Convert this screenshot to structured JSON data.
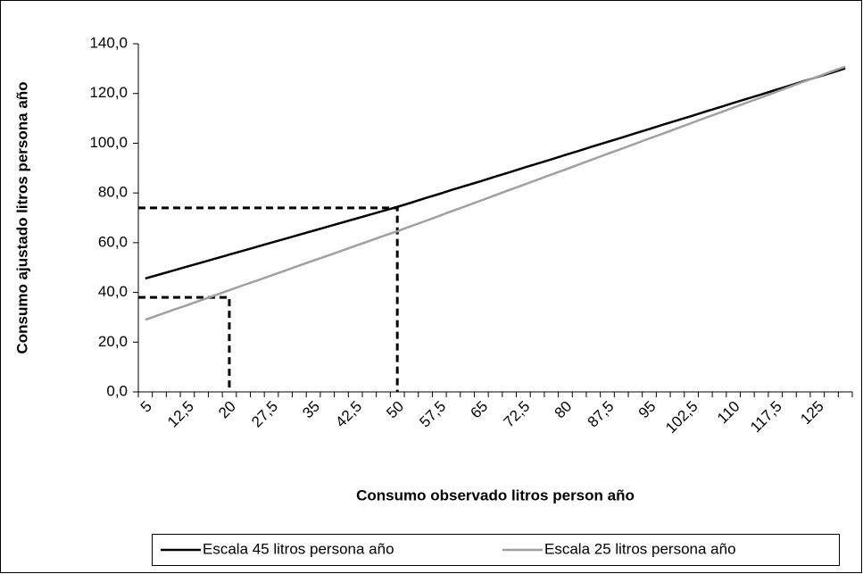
{
  "chart_data": {
    "type": "line",
    "x_label": "Consumo observado litros person año",
    "y_label": "Consumo ajustado litros persona año",
    "categories": [
      "5",
      null,
      null,
      "12,5",
      null,
      null,
      "20",
      null,
      null,
      "27,5",
      null,
      null,
      "35",
      null,
      null,
      "42,5",
      null,
      null,
      "50",
      null,
      null,
      "57,5",
      null,
      null,
      "65",
      null,
      null,
      "72,5",
      null,
      null,
      "80",
      null,
      null,
      "87,5",
      null,
      null,
      "95",
      null,
      null,
      "102,5",
      null,
      null,
      "110",
      null,
      null,
      "117,5",
      null,
      null,
      "125",
      null,
      null
    ],
    "series": [
      {
        "name": "Escala 45 litros persona año",
        "color": "#000000",
        "values": [
          45.6,
          47.2,
          48.8,
          50.4,
          52.0,
          53.6,
          55.2,
          56.8,
          58.4,
          60.0,
          61.6,
          63.2,
          64.8,
          66.4,
          68.0,
          69.6,
          71.2,
          72.8,
          74.4,
          76.1,
          77.9,
          79.6,
          81.4,
          83.1,
          84.8,
          86.6,
          88.3,
          90.1,
          91.8,
          93.5,
          95.3,
          97.0,
          98.8,
          100.5,
          102.2,
          104.0,
          105.7,
          107.5,
          109.2,
          110.9,
          112.7,
          114.4,
          116.2,
          117.9,
          119.6,
          121.4,
          123.1,
          124.9,
          126.6,
          128.3,
          130.1
        ]
      },
      {
        "name": "Escala 25 litros persona año",
        "color": "#a0a0a0",
        "values": [
          29.0,
          31.0,
          33.0,
          34.9,
          36.9,
          38.9,
          40.9,
          42.9,
          44.8,
          46.8,
          48.8,
          50.8,
          52.8,
          54.7,
          56.7,
          58.7,
          60.7,
          62.7,
          64.6,
          66.7,
          68.7,
          70.8,
          72.9,
          74.9,
          77.0,
          79.1,
          81.2,
          83.2,
          85.3,
          87.4,
          89.4,
          91.5,
          93.6,
          95.7,
          97.7,
          99.8,
          101.9,
          103.9,
          106.0,
          108.1,
          110.2,
          112.2,
          114.3,
          116.4,
          118.4,
          120.5,
          122.6,
          124.7,
          126.7,
          128.8,
          130.8
        ]
      }
    ],
    "guides": [
      {
        "x": "20",
        "y": 38
      },
      {
        "x": "50",
        "y": 74
      }
    ],
    "ylim": [
      0,
      140
    ],
    "yticks": [
      {
        "value": 0,
        "label": "0,0"
      },
      {
        "value": 20,
        "label": "20,0"
      },
      {
        "value": 40,
        "label": "40,0"
      },
      {
        "value": 60,
        "label": "60,0"
      },
      {
        "value": 80,
        "label": "80,0"
      },
      {
        "value": 100,
        "label": "100,0"
      },
      {
        "value": 120,
        "label": "120,0"
      },
      {
        "value": 140,
        "label": "140,0"
      }
    ],
    "grid": false,
    "legend": "bottom"
  }
}
